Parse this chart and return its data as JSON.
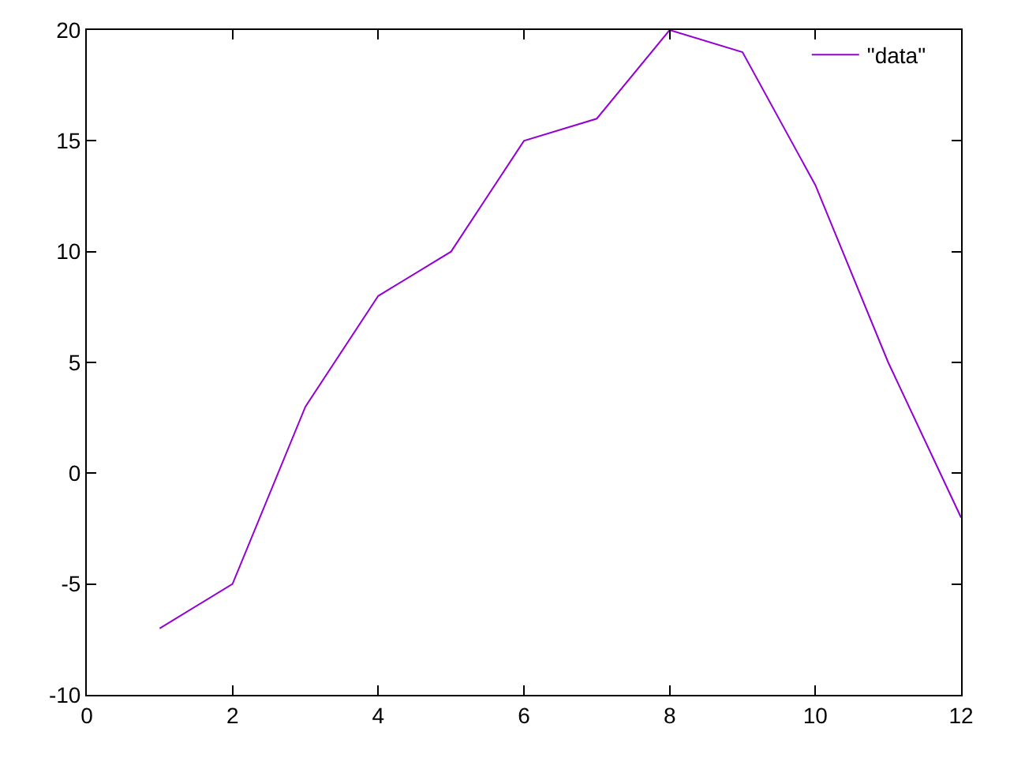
{
  "chart_data": {
    "type": "line",
    "x": [
      1,
      2,
      3,
      4,
      5,
      6,
      7,
      8,
      9,
      10,
      11,
      12
    ],
    "series": [
      {
        "name": "\"data\"",
        "color": "#9400d3",
        "values": [
          -7,
          -5,
          3,
          8,
          10,
          15,
          16,
          20,
          19,
          13,
          5,
          -2
        ]
      }
    ],
    "xlim": [
      0,
      12
    ],
    "xticks": [
      0,
      2,
      4,
      6,
      8,
      10,
      12
    ],
    "ylim": [
      -10,
      20
    ],
    "yticks": [
      -10,
      -5,
      0,
      5,
      10,
      15,
      20
    ],
    "legend": "top right",
    "marker": "none",
    "line_style": "solid"
  }
}
